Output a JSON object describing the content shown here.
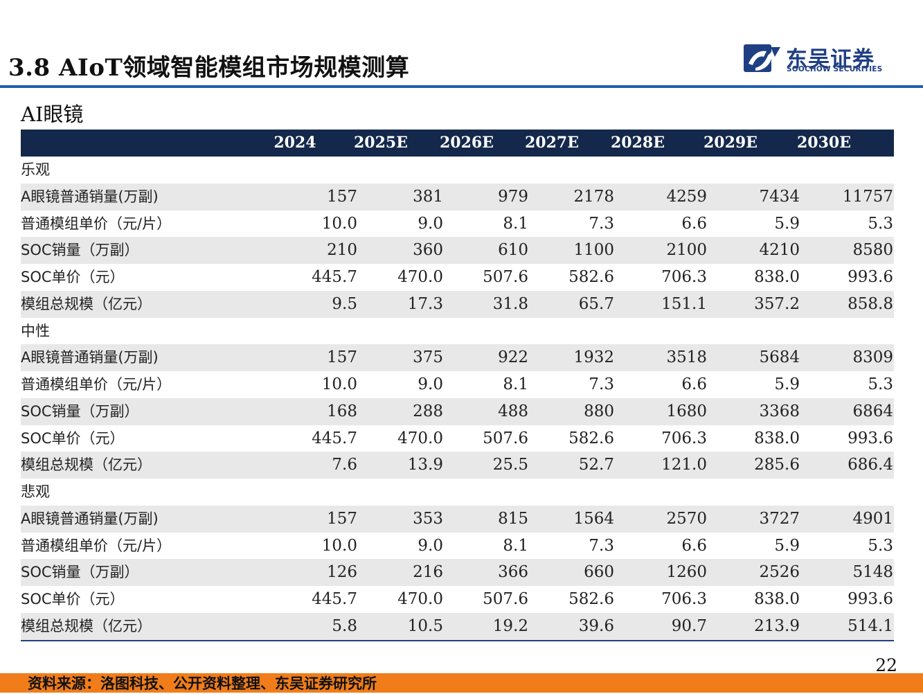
{
  "header": {
    "title": "3.8 AIoT领域智能模组市场规模测算",
    "logo": {
      "cn": "东吴证券",
      "en": "SOOCHOW SECURITIES",
      "icon": "soochow-logo-icon",
      "color": "#1f3f83"
    }
  },
  "section_title": "AI眼镜",
  "table": {
    "columns": [
      "",
      "2024",
      "2025E",
      "2026E",
      "2027E",
      "2028E",
      "2029E",
      "2030E"
    ],
    "groups": [
      {
        "name": "乐观",
        "rows": [
          {
            "label": "A眼镜普通销量(万副)",
            "values": [
              "157",
              "381",
              "979",
              "2178",
              "4259",
              "7434",
              "11757"
            ]
          },
          {
            "label": "普通模组单价（元/片）",
            "values": [
              "10.0",
              "9.0",
              "8.1",
              "7.3",
              "6.6",
              "5.9",
              "5.3"
            ]
          },
          {
            "label": "SOC销量（万副）",
            "values": [
              "210",
              "360",
              "610",
              "1100",
              "2100",
              "4210",
              "8580"
            ]
          },
          {
            "label": "SOC单价（元）",
            "values": [
              "445.7",
              "470.0",
              "507.6",
              "582.6",
              "706.3",
              "838.0",
              "993.6"
            ]
          },
          {
            "label": "模组总规模（亿元）",
            "values": [
              "9.5",
              "17.3",
              "31.8",
              "65.7",
              "151.1",
              "357.2",
              "858.8"
            ]
          }
        ]
      },
      {
        "name": "中性",
        "rows": [
          {
            "label": "A眼镜普通销量(万副)",
            "values": [
              "157",
              "375",
              "922",
              "1932",
              "3518",
              "5684",
              "8309"
            ]
          },
          {
            "label": "普通模组单价（元/片）",
            "values": [
              "10.0",
              "9.0",
              "8.1",
              "7.3",
              "6.6",
              "5.9",
              "5.3"
            ]
          },
          {
            "label": "SOC销量（万副）",
            "values": [
              "168",
              "288",
              "488",
              "880",
              "1680",
              "3368",
              "6864"
            ]
          },
          {
            "label": "SOC单价（元）",
            "values": [
              "445.7",
              "470.0",
              "507.6",
              "582.6",
              "706.3",
              "838.0",
              "993.6"
            ]
          },
          {
            "label": "模组总规模（亿元）",
            "values": [
              "7.6",
              "13.9",
              "25.5",
              "52.7",
              "121.0",
              "285.6",
              "686.4"
            ]
          }
        ]
      },
      {
        "name": "悲观",
        "rows": [
          {
            "label": "A眼镜普通销量(万副)",
            "values": [
              "157",
              "353",
              "815",
              "1564",
              "2570",
              "3727",
              "4901"
            ]
          },
          {
            "label": "普通模组单价（元/片）",
            "values": [
              "10.0",
              "9.0",
              "8.1",
              "7.3",
              "6.6",
              "5.9",
              "5.3"
            ]
          },
          {
            "label": "SOC销量（万副）",
            "values": [
              "126",
              "216",
              "366",
              "660",
              "1260",
              "2526",
              "5148"
            ]
          },
          {
            "label": "SOC单价（元）",
            "values": [
              "445.7",
              "470.0",
              "507.6",
              "582.6",
              "706.3",
              "838.0",
              "993.6"
            ]
          },
          {
            "label": "模组总规模（亿元）",
            "values": [
              "5.8",
              "10.5",
              "19.2",
              "39.6",
              "90.7",
              "213.9",
              "514.1"
            ]
          }
        ]
      }
    ]
  },
  "footer": {
    "source": "资料来源：洛图科技、公开资料整理、东吴证券研究所",
    "page_number": "22",
    "accent_color": "#f07d1a"
  }
}
